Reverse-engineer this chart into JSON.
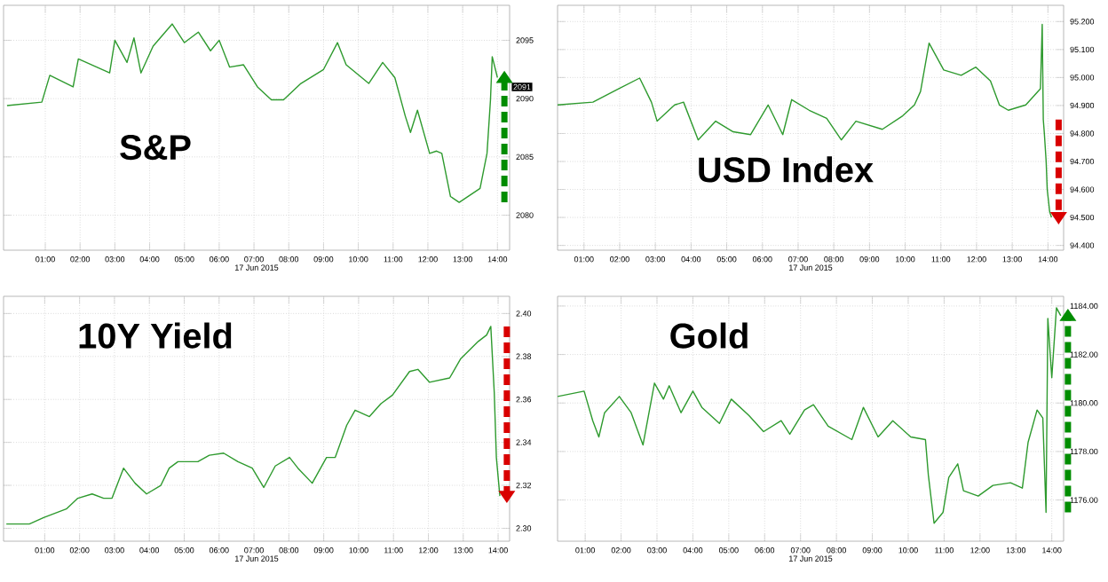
{
  "chart_data": [
    {
      "type": "line",
      "title": "S&P",
      "xlabel": "17 Jun 2015",
      "color": "#2e9a2e",
      "grid": true,
      "x": [
        -0.1,
        0.9,
        1.13,
        1.8,
        1.95,
        2.85,
        3.0,
        3.35,
        3.55,
        3.75,
        4.1,
        4.65,
        5.0,
        5.4,
        5.75,
        6.0,
        6.3,
        6.7,
        7.1,
        7.5,
        7.85,
        8.35,
        9.0,
        9.4,
        9.65,
        10.3,
        10.7,
        11.05,
        11.35,
        11.5,
        11.7,
        12.05,
        12.25,
        12.4,
        12.65,
        12.9,
        13.5,
        13.7,
        13.8,
        13.85,
        14.0
      ],
      "values": [
        2089.4,
        2089.7,
        2092,
        2091,
        2093.4,
        2092.2,
        2095,
        2093.1,
        2095.2,
        2092.2,
        2094.5,
        2096.4,
        2094.8,
        2095.7,
        2094.1,
        2095,
        2092.7,
        2092.9,
        2091,
        2089.9,
        2089.9,
        2091.3,
        2092.5,
        2094.8,
        2092.9,
        2091.3,
        2093.1,
        2091.8,
        2088.5,
        2087.1,
        2089,
        2085.3,
        2085.5,
        2085.3,
        2081.6,
        2081.1,
        2082.3,
        2085.3,
        2089.9,
        2093.6,
        2091.8
      ],
      "annotations": [
        {
          "text": "2091",
          "y": 2091
        }
      ],
      "xlim": [
        -0.2,
        14.35
      ],
      "ylim": [
        2077,
        2098
      ],
      "xticks": [
        {
          "value": 1,
          "label": "01:00"
        },
        {
          "value": 2,
          "label": "02:00"
        },
        {
          "value": 3,
          "label": "03:00"
        },
        {
          "value": 4,
          "label": "04:00"
        },
        {
          "value": 5,
          "label": "05:00"
        },
        {
          "value": 6,
          "label": "06:00"
        },
        {
          "value": 7,
          "label": "07:00"
        },
        {
          "value": 8,
          "label": "08:00"
        },
        {
          "value": 9,
          "label": "09:00"
        },
        {
          "value": 10,
          "label": "10:00"
        },
        {
          "value": 11,
          "label": "11:00"
        },
        {
          "value": 12,
          "label": "12:00"
        },
        {
          "value": 13,
          "label": "13:00"
        },
        {
          "value": 14,
          "label": "14:00"
        }
      ],
      "yticks": [
        2080,
        2085,
        2090,
        2095
      ]
    },
    {
      "type": "line",
      "title": "USD Index",
      "xlabel": "17 Jun 2015",
      "color": "#2e9a2e",
      "grid": true,
      "x": [
        0.26,
        1.25,
        1.98,
        2.56,
        2.89,
        3.05,
        3.54,
        3.79,
        4.2,
        4.69,
        5.18,
        5.67,
        6.16,
        6.57,
        6.82,
        7.31,
        7.8,
        8.21,
        8.62,
        9.36,
        9.93,
        10.26,
        10.43,
        10.67,
        11.08,
        11.57,
        11.98,
        12.39,
        12.64,
        12.89,
        13.38,
        13.79,
        13.84,
        13.87,
        13.9,
        13.95,
        13.98,
        14.05,
        14.1
      ],
      "values": [
        94.902,
        94.912,
        94.96,
        94.998,
        94.912,
        94.844,
        94.902,
        94.912,
        94.777,
        94.844,
        94.806,
        94.796,
        94.902,
        94.796,
        94.921,
        94.883,
        94.854,
        94.777,
        94.844,
        94.815,
        94.863,
        94.902,
        94.95,
        95.123,
        95.027,
        95.008,
        95.037,
        94.988,
        94.902,
        94.883,
        94.902,
        94.96,
        95.19,
        94.85,
        94.8,
        94.7,
        94.6,
        94.52,
        94.5
      ],
      "xlim": [
        0.26,
        14.44
      ],
      "ylim": [
        94.383,
        95.258
      ],
      "xticks": [
        {
          "value": 1,
          "label": "01:00"
        },
        {
          "value": 2,
          "label": "02:00"
        },
        {
          "value": 3,
          "label": "03:00"
        },
        {
          "value": 4,
          "label": "04:00"
        },
        {
          "value": 5,
          "label": "05:00"
        },
        {
          "value": 6,
          "label": "06:00"
        },
        {
          "value": 7,
          "label": "07:00"
        },
        {
          "value": 8,
          "label": "08:00"
        },
        {
          "value": 9,
          "label": "09:00"
        },
        {
          "value": 10,
          "label": "10:00"
        },
        {
          "value": 11,
          "label": "11:00"
        },
        {
          "value": 12,
          "label": "12:00"
        },
        {
          "value": 13,
          "label": "13:00"
        },
        {
          "value": 14,
          "label": "14:00"
        }
      ],
      "yticks": [
        {
          "value": 94.4,
          "label": "94.400"
        },
        {
          "value": 94.5,
          "label": "94.500"
        },
        {
          "value": 94.6,
          "label": "94.600"
        },
        {
          "value": 94.7,
          "label": "94.700"
        },
        {
          "value": 94.8,
          "label": "94.800"
        },
        {
          "value": 94.9,
          "label": "94.900"
        },
        {
          "value": 95.0,
          "label": "95.000"
        },
        {
          "value": 95.1,
          "label": "95.100"
        },
        {
          "value": 95.2,
          "label": "95.200"
        }
      ]
    },
    {
      "type": "line",
      "title": "10Y Yield",
      "xlabel": "17 Jun 2015",
      "color": "#2e9a2e",
      "grid": true,
      "x": [
        -0.1,
        0.56,
        0.97,
        1.62,
        1.95,
        2.36,
        2.69,
        2.93,
        3.26,
        3.59,
        3.92,
        4.33,
        4.57,
        4.82,
        5.39,
        5.72,
        6.13,
        6.54,
        6.95,
        7.28,
        7.61,
        8.02,
        8.26,
        8.67,
        9.08,
        9.33,
        9.66,
        9.9,
        10.31,
        10.64,
        10.97,
        11.46,
        11.7,
        12.03,
        12.61,
        12.93,
        13.43,
        13.67,
        13.79,
        13.89,
        13.95,
        14.05
      ],
      "values": [
        2.302,
        2.302,
        2.305,
        2.309,
        2.314,
        2.316,
        2.314,
        2.314,
        2.328,
        2.321,
        2.316,
        2.32,
        2.328,
        2.331,
        2.331,
        2.334,
        2.335,
        2.331,
        2.328,
        2.319,
        2.329,
        2.333,
        2.328,
        2.321,
        2.333,
        2.333,
        2.348,
        2.355,
        2.352,
        2.358,
        2.362,
        2.373,
        2.374,
        2.368,
        2.37,
        2.379,
        2.387,
        2.39,
        2.394,
        2.363,
        2.333,
        2.315
      ],
      "xlim": [
        -0.18,
        14.33
      ],
      "ylim": [
        2.294,
        2.408
      ],
      "xticks": [
        {
          "value": 1,
          "label": "01:00"
        },
        {
          "value": 2,
          "label": "02:00"
        },
        {
          "value": 3,
          "label": "03:00"
        },
        {
          "value": 4,
          "label": "04:00"
        },
        {
          "value": 5,
          "label": "05:00"
        },
        {
          "value": 6,
          "label": "06:00"
        },
        {
          "value": 7,
          "label": "07:00"
        },
        {
          "value": 8,
          "label": "08:00"
        },
        {
          "value": 9,
          "label": "09:00"
        },
        {
          "value": 10,
          "label": "10:00"
        },
        {
          "value": 11,
          "label": "11:00"
        },
        {
          "value": 12,
          "label": "12:00"
        },
        {
          "value": 13,
          "label": "13:00"
        },
        {
          "value": 14,
          "label": "14:00"
        }
      ],
      "yticks": [
        {
          "value": 2.3,
          "label": "2.30"
        },
        {
          "value": 2.32,
          "label": "2.32"
        },
        {
          "value": 2.34,
          "label": "2.34"
        },
        {
          "value": 2.36,
          "label": "2.36"
        },
        {
          "value": 2.38,
          "label": "2.38"
        },
        {
          "value": 2.4,
          "label": "2.40"
        }
      ]
    },
    {
      "type": "line",
      "title": "Gold",
      "xlabel": "17 Jun 2015",
      "color": "#2e9a2e",
      "grid": true,
      "x": [
        0.23,
        0.97,
        1.21,
        1.38,
        1.54,
        1.95,
        2.28,
        2.61,
        2.93,
        3.18,
        3.34,
        3.67,
        4.0,
        4.25,
        4.74,
        5.07,
        5.56,
        5.97,
        6.46,
        6.7,
        7.11,
        7.36,
        7.77,
        8.43,
        8.75,
        9.16,
        9.57,
        10.07,
        10.48,
        10.56,
        10.72,
        10.97,
        11.13,
        11.38,
        11.54,
        11.95,
        12.36,
        12.85,
        13.18,
        13.34,
        13.59,
        13.75,
        13.84,
        13.89,
        14.0,
        14.13,
        14.25
      ],
      "values": [
        1180.27,
        1180.49,
        1179.27,
        1178.6,
        1179.6,
        1180.27,
        1179.6,
        1178.27,
        1180.82,
        1180.16,
        1180.71,
        1179.6,
        1180.49,
        1179.82,
        1179.16,
        1180.16,
        1179.49,
        1178.82,
        1179.27,
        1178.71,
        1179.71,
        1179.93,
        1179.04,
        1178.49,
        1179.82,
        1178.6,
        1179.27,
        1178.6,
        1178.49,
        1177.04,
        1175.04,
        1175.49,
        1176.93,
        1177.49,
        1176.38,
        1176.16,
        1176.6,
        1176.71,
        1176.49,
        1178.38,
        1179.71,
        1179.38,
        1175.49,
        1183.49,
        1181.04,
        1183.93,
        1183.6
      ],
      "xlim": [
        0.23,
        14.33
      ],
      "ylim": [
        1174.3,
        1184.4
      ],
      "xticks": [
        {
          "value": 1,
          "label": "01:00"
        },
        {
          "value": 2,
          "label": "02:00"
        },
        {
          "value": 3,
          "label": "03:00"
        },
        {
          "value": 4,
          "label": "04:00"
        },
        {
          "value": 5,
          "label": "05:00"
        },
        {
          "value": 6,
          "label": "06:00"
        },
        {
          "value": 7,
          "label": "07:00"
        },
        {
          "value": 8,
          "label": "08:00"
        },
        {
          "value": 9,
          "label": "09:00"
        },
        {
          "value": 10,
          "label": "10:00"
        },
        {
          "value": 11,
          "label": "11:00"
        },
        {
          "value": 12,
          "label": "12:00"
        },
        {
          "value": 13,
          "label": "13:00"
        },
        {
          "value": 14,
          "label": "14:00"
        }
      ],
      "yticks": [
        {
          "value": 1176,
          "label": "1176.00"
        },
        {
          "value": 1178,
          "label": "1178.00"
        },
        {
          "value": 1180,
          "label": "1180.00"
        },
        {
          "value": 1182,
          "label": "1182.00"
        },
        {
          "value": 1184,
          "label": "1184.00"
        }
      ]
    }
  ]
}
